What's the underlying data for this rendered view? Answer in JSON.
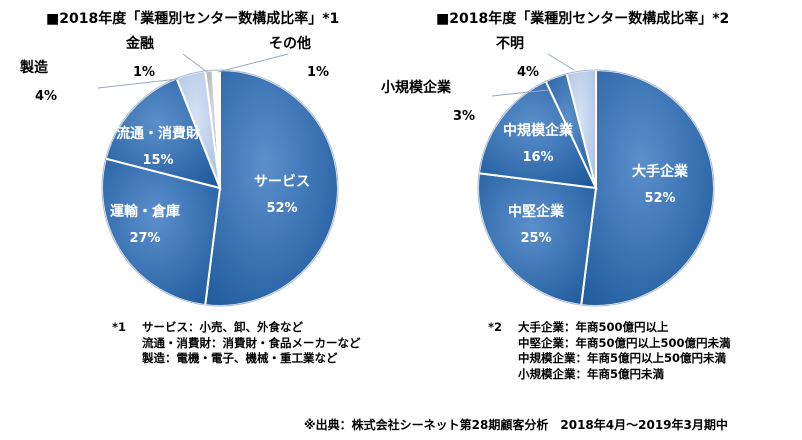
{
  "chart_data": [
    {
      "type": "pie",
      "title": "■2018年度「業種別センター数構成比率」*1",
      "slices": [
        {
          "label": "サービス",
          "value": 52,
          "display": "52%"
        },
        {
          "label": "運輸・倉庫",
          "value": 27,
          "display": "27%"
        },
        {
          "label": "流通・消費財",
          "value": 15,
          "display": "15%"
        },
        {
          "label": "製造",
          "value": 4,
          "display": "4%"
        },
        {
          "label": "金融",
          "value": 1,
          "display": "1%"
        },
        {
          "label": "その他",
          "value": 1,
          "display": "1%"
        }
      ]
    },
    {
      "type": "pie",
      "title": "■2018年度「業種別センター数構成比率」*2",
      "slices": [
        {
          "label": "大手企業",
          "value": 52,
          "display": "52%"
        },
        {
          "label": "中堅企業",
          "value": 25,
          "display": "25%"
        },
        {
          "label": "中規模企業",
          "value": 16,
          "display": "16%"
        },
        {
          "label": "小規模企業",
          "value": 3,
          "display": "3%"
        },
        {
          "label": "不明",
          "value": 4,
          "display": "4%"
        }
      ]
    }
  ],
  "notes": {
    "left": {
      "mark": "*1",
      "lines": [
        "サービス：小売、卸、外食など",
        "流通・消費財：消費財・食品メーカーなど",
        "製造：電機・電子、機械・重工業など"
      ]
    },
    "right": {
      "mark": "*2",
      "lines": [
        "大手企業：年商500億円以上",
        "中堅企業：年商50億円以上500億円未満",
        "中規模企業：年商5億円以上50億円未満",
        "小規模企業：年商5億円未満"
      ]
    }
  },
  "source": "※出典：株式会社シーネット第28期顧客分析　2018年4月～2019年3月期中",
  "colors": {
    "main_blue": "#2e6db0",
    "light_blue": "#b9cbe6",
    "lighter_blue": "#d3def0",
    "gray": "#bfbfbf",
    "white": "#ffffff"
  }
}
